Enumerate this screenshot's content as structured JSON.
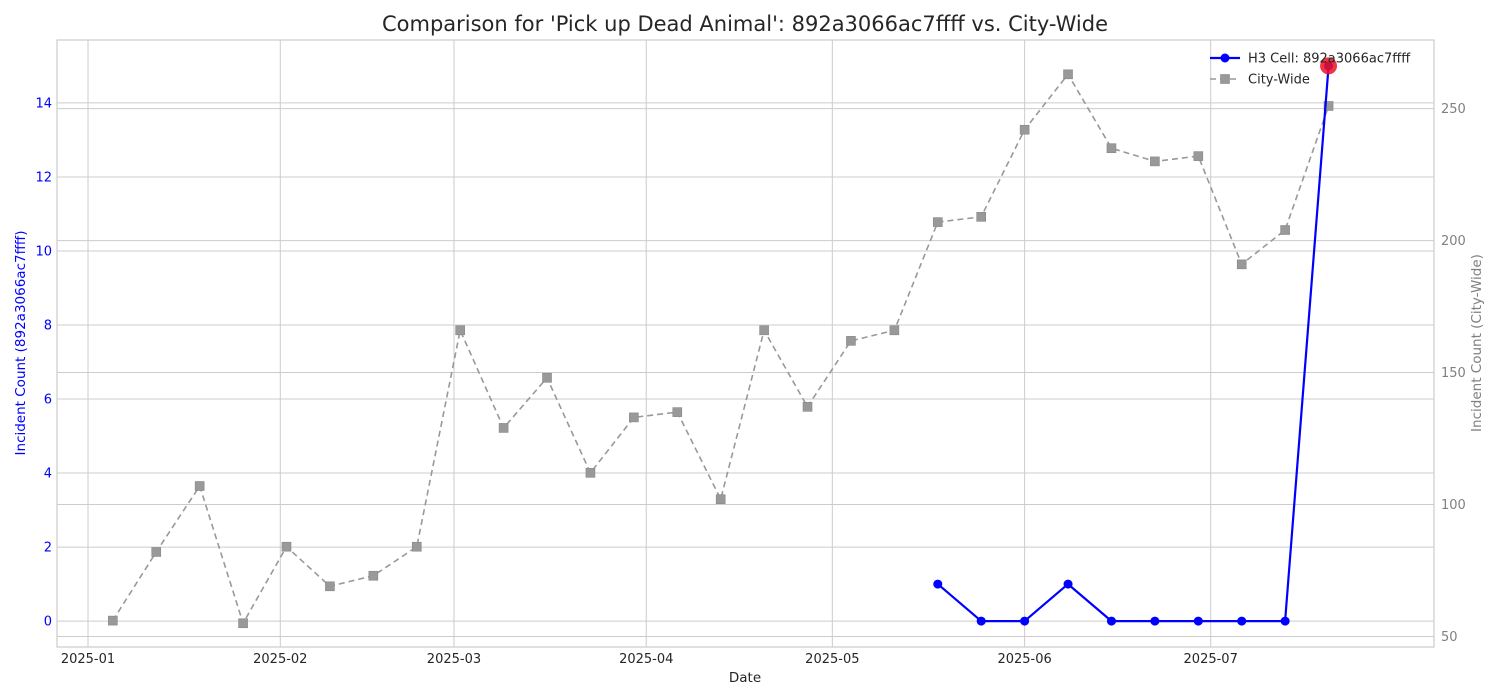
{
  "chart_data": {
    "type": "line",
    "title": "Comparison for 'Pick up Dead Animal': 892a3066ac7ffff vs. City-Wide",
    "xlabel": "Date",
    "ylabel_left": "Incident Count (892a3066ac7ffff)",
    "ylabel_right": "Incident Count (City-Wide)",
    "xlim": [
      "2024-12-27",
      "2025-08-06"
    ],
    "ylim_left": [
      -0.7,
      15.7
    ],
    "ylim_right": [
      46,
      276
    ],
    "x_ticks": [
      "2025-01-01",
      "2025-02-01",
      "2025-03-01",
      "2025-04-01",
      "2025-05-01",
      "2025-06-01",
      "2025-07-01"
    ],
    "x_tick_labels": [
      "2025-01",
      "2025-02",
      "2025-03",
      "2025-04",
      "2025-05",
      "2025-06",
      "2025-07"
    ],
    "y_ticks_left": [
      0,
      2,
      4,
      6,
      8,
      10,
      12,
      14
    ],
    "y_ticks_right": [
      50,
      100,
      150,
      200,
      250
    ],
    "grid": true,
    "legend_position": "top-right",
    "series": [
      {
        "name": "H3 Cell: 892a3066ac7ffff",
        "axis": "left",
        "color": "#0000ff",
        "marker": "circle",
        "line_style": "solid",
        "x": [
          "2025-05-18",
          "2025-05-25",
          "2025-06-01",
          "2025-06-08",
          "2025-06-15",
          "2025-06-22",
          "2025-06-29",
          "2025-07-06",
          "2025-07-13",
          "2025-07-20"
        ],
        "values": [
          1,
          0,
          0,
          1,
          0,
          0,
          0,
          0,
          0,
          15
        ]
      },
      {
        "name": "City-Wide",
        "axis": "right",
        "color": "#999999",
        "marker": "square",
        "line_style": "dashed",
        "x": [
          "2025-01-05",
          "2025-01-12",
          "2025-01-19",
          "2025-01-26",
          "2025-02-02",
          "2025-02-09",
          "2025-02-16",
          "2025-02-23",
          "2025-03-02",
          "2025-03-09",
          "2025-03-16",
          "2025-03-23",
          "2025-03-30",
          "2025-04-06",
          "2025-04-13",
          "2025-04-20",
          "2025-04-27",
          "2025-05-04",
          "2025-05-11",
          "2025-05-18",
          "2025-05-25",
          "2025-06-01",
          "2025-06-08",
          "2025-06-15",
          "2025-06-22",
          "2025-06-29",
          "2025-07-06",
          "2025-07-13",
          "2025-07-20"
        ],
        "values": [
          56,
          82,
          107,
          55,
          84,
          69,
          73,
          84,
          166,
          129,
          148,
          112,
          133,
          135,
          102,
          166,
          137,
          162,
          166,
          207,
          209,
          242,
          263,
          235,
          230,
          232,
          191,
          204,
          251
        ]
      }
    ],
    "annotations": [
      {
        "series": "H3 Cell: 892a3066ac7ffff",
        "x": "2025-07-20",
        "value": 15,
        "marker": "highlight",
        "color": "#ee1122"
      }
    ]
  }
}
